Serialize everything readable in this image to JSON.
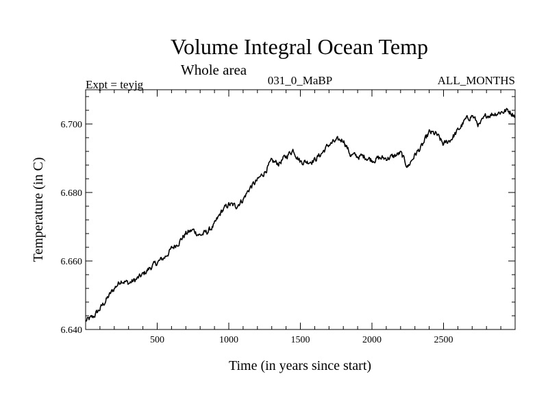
{
  "chart_data": {
    "type": "line",
    "title": "Volume Integral Ocean Temp",
    "subtitle": "Whole area",
    "expt": "Expt = teyjg",
    "period": "031_0_MaBP",
    "months": "ALL_MONTHS",
    "xlabel": "Time (in years since start)",
    "ylabel": "Temperature (in C)",
    "xlim": [
      0,
      3000
    ],
    "ylim": [
      6.64,
      6.71
    ],
    "xticks": [
      500,
      1000,
      1500,
      2000,
      2500
    ],
    "xtick_labels": [
      "500",
      "1000",
      "1500",
      "2000",
      "2500"
    ],
    "yticks": [
      6.64,
      6.66,
      6.68,
      6.7
    ],
    "ytick_labels": [
      "6.640",
      "6.660",
      "6.680",
      "6.700"
    ],
    "x_minor_step": 100,
    "y_minor_step": 0.004,
    "series": [
      {
        "name": "Volume Integral Ocean Temp",
        "noise_amplitude": 0.0009,
        "x": [
          0,
          50,
          100,
          150,
          200,
          250,
          300,
          350,
          400,
          450,
          500,
          550,
          600,
          650,
          700,
          750,
          800,
          850,
          900,
          950,
          1000,
          1050,
          1100,
          1150,
          1200,
          1250,
          1300,
          1350,
          1400,
          1450,
          1500,
          1550,
          1600,
          1650,
          1700,
          1750,
          1800,
          1850,
          1900,
          1950,
          2000,
          2050,
          2100,
          2150,
          2200,
          2250,
          2300,
          2350,
          2400,
          2450,
          2500,
          2550,
          2600,
          2650,
          2700,
          2750,
          2800,
          2850,
          2900,
          2950,
          3000
        ],
        "y": [
          6.6425,
          6.6435,
          6.646,
          6.649,
          6.652,
          6.6545,
          6.6535,
          6.6545,
          6.656,
          6.658,
          6.6595,
          6.661,
          6.6635,
          6.6655,
          6.668,
          6.669,
          6.6675,
          6.6685,
          6.6705,
          6.6745,
          6.6765,
          6.676,
          6.678,
          6.6815,
          6.6835,
          6.686,
          6.689,
          6.6885,
          6.6905,
          6.6925,
          6.689,
          6.689,
          6.6895,
          6.6915,
          6.694,
          6.695,
          6.6955,
          6.691,
          6.6905,
          6.6905,
          6.6895,
          6.69,
          6.69,
          6.6905,
          6.6915,
          6.6875,
          6.691,
          6.6935,
          6.6975,
          6.697,
          6.694,
          6.6955,
          6.698,
          6.701,
          6.7025,
          6.6995,
          6.7025,
          6.703,
          6.7035,
          6.704,
          6.7025
        ]
      }
    ]
  }
}
